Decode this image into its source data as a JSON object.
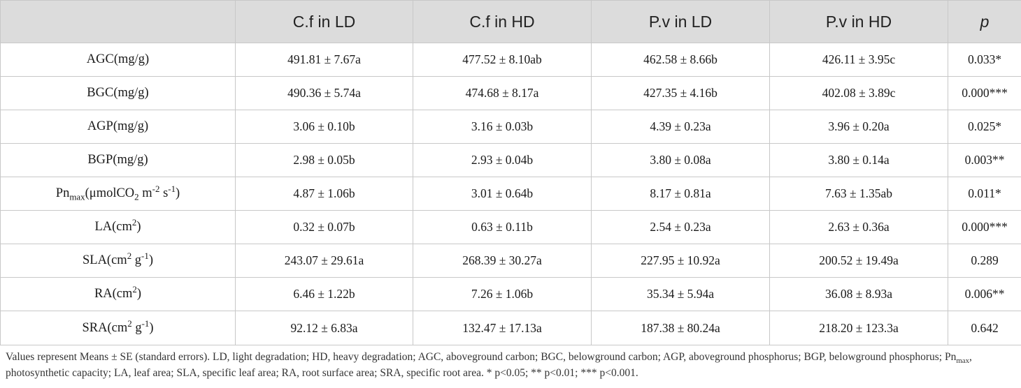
{
  "headers": [
    "",
    "C.f in LD",
    "C.f in HD",
    "P.v in LD",
    "P.v in HD",
    "p"
  ],
  "rows": [
    {
      "label": {
        "base": "AGC(mg/g)",
        "sub": "",
        "mid": "",
        "sup1": "",
        "mid2": "",
        "sup2": "",
        "end": ""
      },
      "cells": [
        "491.81 ± 7.67a",
        "477.52 ± 8.10ab",
        "462.58 ± 8.66b",
        "426.11 ± 3.95c",
        "0.033*"
      ]
    },
    {
      "label": {
        "base": "BGC(mg/g)",
        "sub": "",
        "mid": "",
        "sup1": "",
        "mid2": "",
        "sup2": "",
        "end": ""
      },
      "cells": [
        "490.36 ± 5.74a",
        "474.68 ± 8.17a",
        "427.35 ± 4.16b",
        "402.08 ± 3.89c",
        "0.000***"
      ]
    },
    {
      "label": {
        "base": "AGP(mg/g)",
        "sub": "",
        "mid": "",
        "sup1": "",
        "mid2": "",
        "sup2": "",
        "end": ""
      },
      "cells": [
        "3.06 ± 0.10b",
        "3.16 ± 0.03b",
        "4.39 ± 0.23a",
        "3.96 ± 0.20a",
        "0.025*"
      ]
    },
    {
      "label": {
        "base": "BGP(mg/g)",
        "sub": "",
        "mid": "",
        "sup1": "",
        "mid2": "",
        "sup2": "",
        "end": ""
      },
      "cells": [
        "2.98 ± 0.05b",
        "2.93 ± 0.04b",
        "3.80 ± 0.08a",
        "3.80 ± 0.14a",
        "0.003**"
      ]
    },
    {
      "label": {
        "base": "Pn",
        "sub": "max",
        "mid": "(μmolCO",
        "sub2": "2",
        "mid1b": " m",
        "sup1": "-2",
        "mid2": " s",
        "sup2": "-1",
        "end": ")"
      },
      "cells": [
        "4.87 ± 1.06b",
        "3.01 ± 0.64b",
        "8.17 ± 0.81a",
        "7.63 ± 1.35ab",
        "0.011*"
      ]
    },
    {
      "label": {
        "base": "LA(cm",
        "sup1": "2",
        "end": ")"
      },
      "cells": [
        "0.32 ± 0.07b",
        "0.63 ± 0.11b",
        "2.54 ± 0.23a",
        "2.63 ± 0.36a",
        "0.000***"
      ]
    },
    {
      "label": {
        "base": "SLA(cm",
        "sup1": "2",
        "mid2": " g",
        "sup2": "-1",
        "end": ")"
      },
      "cells": [
        "243.07 ± 29.61a",
        "268.39 ± 30.27a",
        "227.95 ± 10.92a",
        "200.52 ± 19.49a",
        "0.289"
      ]
    },
    {
      "label": {
        "base": "RA(cm",
        "sup1": "2",
        "end": ")"
      },
      "cells": [
        "6.46 ± 1.22b",
        "7.26 ± 1.06b",
        "35.34 ± 5.94a",
        "36.08 ± 8.93a",
        "0.006**"
      ]
    },
    {
      "label": {
        "base": "SRA(cm",
        "sup1": "2",
        "mid2": " g",
        "sup2": "-1",
        "end": ")"
      },
      "cells": [
        "92.12 ± 6.83a",
        "132.47 ± 17.13a",
        "187.38 ± 80.24a",
        "218.20 ± 123.3a",
        "0.642"
      ]
    }
  ],
  "footnote": {
    "part1": "Values represent Means ± SE (standard errors). LD, light degradation; HD, heavy degradation; AGC, aboveground carbon; BGC, belowground carbon; AGP, aboveground phosphorus; BGP, belowground phosphorus; Pn",
    "sub": "max",
    "part2": ", photosynthetic capacity; LA, leaf area; SLA, specific leaf area; RA, root surface area; SRA, specific root area. * p<0.05; ** p<0.01; *** p<0.001."
  }
}
